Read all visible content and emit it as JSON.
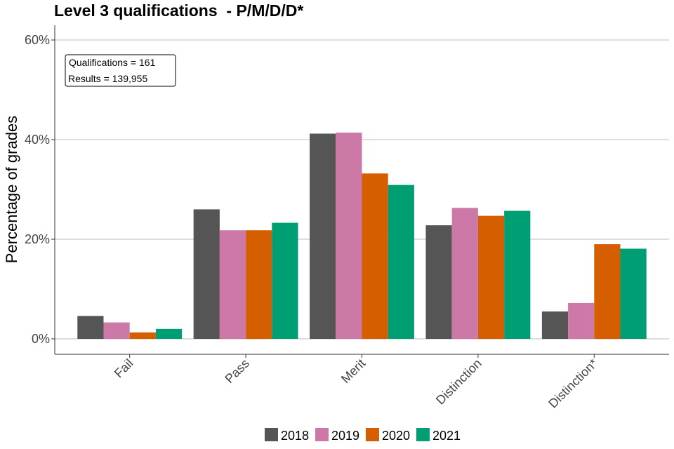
{
  "chart_data": {
    "type": "bar",
    "title": "Level 3 qualifications  - P/M/D/D*",
    "ylabel": "Percentage of grades",
    "xlabel": "",
    "categories": [
      "Fail",
      "Pass",
      "Merit",
      "Distinction",
      "Distinction*"
    ],
    "series": [
      {
        "name": "2018",
        "color": "#555555",
        "values": [
          4.6,
          26.0,
          41.2,
          22.8,
          5.5
        ]
      },
      {
        "name": "2019",
        "color": "#CC79A7",
        "values": [
          3.3,
          21.8,
          41.4,
          26.3,
          7.2
        ]
      },
      {
        "name": "2020",
        "color": "#D55E00",
        "values": [
          1.3,
          21.8,
          33.2,
          24.7,
          19.0
        ]
      },
      {
        "name": "2021",
        "color": "#009E73",
        "values": [
          2.0,
          23.3,
          30.9,
          25.7,
          18.1
        ]
      }
    ],
    "ylim": [
      0,
      60
    ],
    "yticks": [
      0,
      20,
      40,
      60
    ],
    "ytick_labels": [
      "0%",
      "20%",
      "40%",
      "60%"
    ],
    "grid": true,
    "legend_position": "bottom",
    "annotation": {
      "qualifications": "Qualifications = 161",
      "results": "Results = 139,955"
    }
  }
}
